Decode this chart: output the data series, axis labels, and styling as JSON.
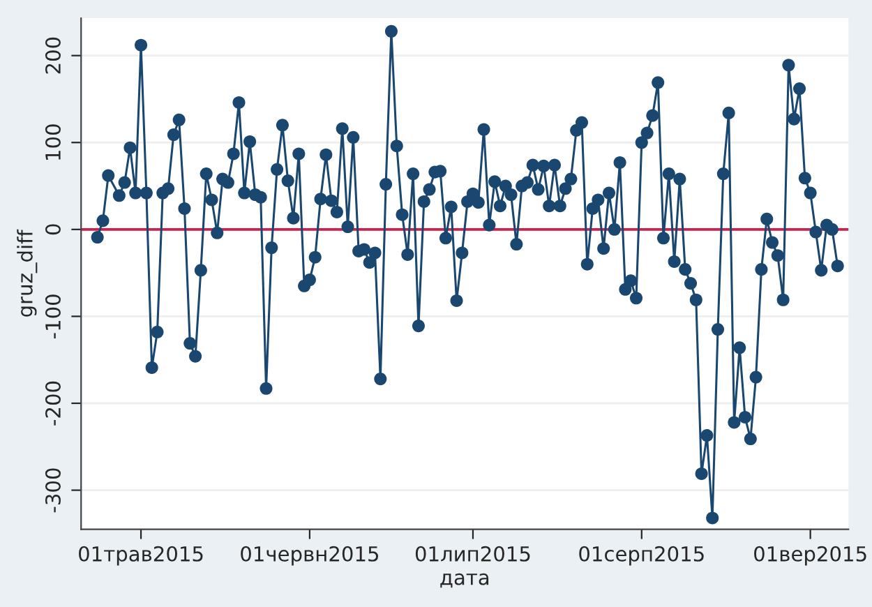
{
  "chart_data": {
    "type": "line",
    "xlabel": "дата",
    "ylabel": "gruz_diff",
    "x": [
      "2015-04-23",
      "2015-04-24",
      "2015-04-25",
      "2015-04-27",
      "2015-04-28",
      "2015-04-29",
      "2015-04-30",
      "2015-05-01",
      "2015-05-02",
      "2015-05-03",
      "2015-05-04",
      "2015-05-05",
      "2015-05-06",
      "2015-05-07",
      "2015-05-08",
      "2015-05-09",
      "2015-05-10",
      "2015-05-11",
      "2015-05-12",
      "2015-05-13",
      "2015-05-14",
      "2015-05-15",
      "2015-05-16",
      "2015-05-17",
      "2015-05-18",
      "2015-05-19",
      "2015-05-20",
      "2015-05-21",
      "2015-05-22",
      "2015-05-23",
      "2015-05-24",
      "2015-05-25",
      "2015-05-26",
      "2015-05-27",
      "2015-05-28",
      "2015-05-29",
      "2015-05-30",
      "2015-05-31",
      "2015-06-01",
      "2015-06-02",
      "2015-06-03",
      "2015-06-04",
      "2015-06-05",
      "2015-06-06",
      "2015-06-07",
      "2015-06-08",
      "2015-06-09",
      "2015-06-10",
      "2015-06-11",
      "2015-06-12",
      "2015-06-13",
      "2015-06-14",
      "2015-06-15",
      "2015-06-16",
      "2015-06-17",
      "2015-06-18",
      "2015-06-19",
      "2015-06-20",
      "2015-06-21",
      "2015-06-22",
      "2015-06-23",
      "2015-06-24",
      "2015-06-25",
      "2015-06-26",
      "2015-06-27",
      "2015-06-28",
      "2015-06-29",
      "2015-06-30",
      "2015-07-01",
      "2015-07-02",
      "2015-07-03",
      "2015-07-04",
      "2015-07-05",
      "2015-07-06",
      "2015-07-07",
      "2015-07-08",
      "2015-07-09",
      "2015-07-10",
      "2015-07-11",
      "2015-07-12",
      "2015-07-13",
      "2015-07-14",
      "2015-07-15",
      "2015-07-16",
      "2015-07-17",
      "2015-07-18",
      "2015-07-19",
      "2015-07-20",
      "2015-07-21",
      "2015-07-22",
      "2015-07-23",
      "2015-07-24",
      "2015-07-25",
      "2015-07-26",
      "2015-07-27",
      "2015-07-28",
      "2015-07-29",
      "2015-07-30",
      "2015-07-31",
      "2015-08-01",
      "2015-08-02",
      "2015-08-03",
      "2015-08-04",
      "2015-08-05",
      "2015-08-06",
      "2015-08-07",
      "2015-08-08",
      "2015-08-09",
      "2015-08-10",
      "2015-08-11",
      "2015-08-12",
      "2015-08-13",
      "2015-08-14",
      "2015-08-15",
      "2015-08-16",
      "2015-08-17",
      "2015-08-18",
      "2015-08-19",
      "2015-08-20",
      "2015-08-21",
      "2015-08-22",
      "2015-08-23",
      "2015-08-24",
      "2015-08-25",
      "2015-08-26",
      "2015-08-27",
      "2015-08-28",
      "2015-08-29",
      "2015-08-30",
      "2015-08-31",
      "2015-09-01",
      "2015-09-02",
      "2015-09-03",
      "2015-09-04",
      "2015-09-05",
      "2015-09-06"
    ],
    "series": [
      {
        "color": "#1a476f",
        "values": [
          -9,
          10,
          62,
          39,
          54,
          94,
          42,
          212,
          42,
          -159,
          -118,
          42,
          47,
          109,
          126,
          24,
          -131,
          -146,
          -47,
          64,
          34,
          -4,
          58,
          54,
          87,
          146,
          42,
          101,
          40,
          37,
          -183,
          -21,
          69,
          120,
          56,
          13,
          87,
          -65,
          -58,
          -32,
          35,
          86,
          33,
          20,
          116,
          3,
          106,
          -25,
          -23,
          -38,
          -27,
          -172,
          52,
          228,
          96,
          17,
          -29,
          64,
          -111,
          32,
          46,
          66,
          67,
          -10,
          26,
          -82,
          -27,
          32,
          41,
          31,
          115,
          5,
          55,
          27,
          50,
          40,
          -17,
          50,
          54,
          74,
          46,
          73,
          27,
          74,
          27,
          47,
          58,
          114,
          123,
          -40,
          24,
          34,
          -22,
          42,
          0,
          77,
          -69,
          -59,
          -79,
          100,
          111,
          131,
          169,
          -10,
          64,
          -37,
          58,
          -46,
          -62,
          -81,
          -281,
          -237,
          -332,
          -115,
          64,
          134,
          -222,
          -136,
          -216,
          -241,
          -170,
          -46,
          12,
          -15,
          -30,
          -81,
          189,
          127,
          162,
          59,
          42,
          -3,
          -47,
          5,
          0,
          -42
        ]
      }
    ],
    "marker": "circle",
    "line_style": "solid",
    "grid": "y",
    "xlim": [
      "2015-04-20",
      "2015-09-08"
    ],
    "ylim": [
      -345,
      243
    ],
    "xticks": [
      {
        "value": "2015-05-01",
        "label": "01трав2015"
      },
      {
        "value": "2015-06-01",
        "label": "01червн2015"
      },
      {
        "value": "2015-07-01",
        "label": "01лип2015"
      },
      {
        "value": "2015-08-01",
        "label": "01серп2015"
      },
      {
        "value": "2015-09-01",
        "label": "01вер2015"
      }
    ],
    "yticks": [
      -300,
      -200,
      -100,
      0,
      100,
      200
    ],
    "ref_lines": [
      {
        "axis": "y",
        "value": 0,
        "color": "#d0204a"
      }
    ]
  }
}
